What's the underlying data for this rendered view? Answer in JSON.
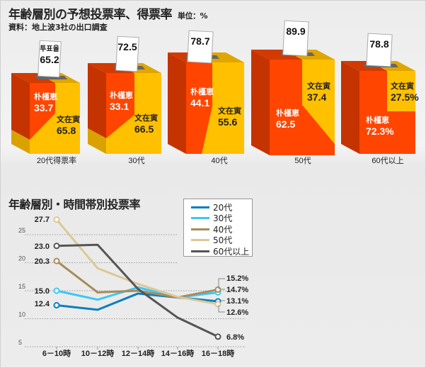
{
  "header": {
    "title": "年齢層別の予想投票率、得票率",
    "unit": "単位：%",
    "source": "資料：地上波3社の出口調査"
  },
  "colors": {
    "park": "#ff4500",
    "moon": "#ffc000"
  },
  "boxes": [
    {
      "age": "20代得票率",
      "turnout_label": "투표율",
      "turnout": "65.2",
      "park_name": "朴槿恵",
      "park": "33.7",
      "moon_name": "文在寅",
      "moon": "65.8"
    },
    {
      "age": "30代",
      "turnout": "72.5",
      "park_name": "朴槿恵",
      "park": "33.1",
      "moon_name": "文在寅",
      "moon": "66.5"
    },
    {
      "age": "40代",
      "turnout": "78.7",
      "park_name": "朴槿恵",
      "park": "44.1",
      "moon_name": "文在寅",
      "moon": "55.6"
    },
    {
      "age": "50代",
      "turnout": "89.9",
      "park_name": "朴槿恵",
      "park": "62.5",
      "moon_name": "文在寅",
      "moon": "37.4"
    },
    {
      "age": "60代以上",
      "turnout": "78.8",
      "park_name": "朴槿恵",
      "park": "72.3%",
      "moon_name": "文在寅",
      "moon": "27.5%"
    }
  ],
  "chart_data": {
    "type": "line",
    "title": "年齢層別・時間帯別投票率",
    "categories": [
      "6－10時",
      "10－12時",
      "12－14時",
      "14－16時",
      "16－18時"
    ],
    "ylim": [
      5,
      28
    ],
    "yticks": [
      "25",
      "20",
      "15",
      "10",
      "5"
    ],
    "grid": true,
    "legend_position": "top-right",
    "series": [
      {
        "name": "20代",
        "color": "#0a7fc0",
        "values": [
          12.4,
          11.6,
          14.5,
          13.8,
          13.1
        ],
        "start_label": "12.4",
        "end_label": "13.1%"
      },
      {
        "name": "30代",
        "color": "#3cc8f4",
        "values": [
          15.0,
          13.4,
          15.6,
          13.8,
          14.7
        ],
        "start_label": "15.0",
        "end_label": "14.7%"
      },
      {
        "name": "40代",
        "color": "#a88b5a",
        "values": [
          20.3,
          14.7,
          15.0,
          13.8,
          15.2
        ],
        "start_label": "20.3",
        "end_label": "15.2%"
      },
      {
        "name": "50代",
        "color": "#dcc896",
        "values": [
          27.7,
          19.0,
          16.2,
          13.9,
          12.6
        ],
        "start_label": "27.7",
        "end_label": "12.6%"
      },
      {
        "name": "60代以上",
        "color": "#555555",
        "values": [
          23.0,
          23.2,
          15.3,
          10.2,
          6.8
        ],
        "start_label": "23.0",
        "end_label": "6.8%"
      }
    ]
  }
}
